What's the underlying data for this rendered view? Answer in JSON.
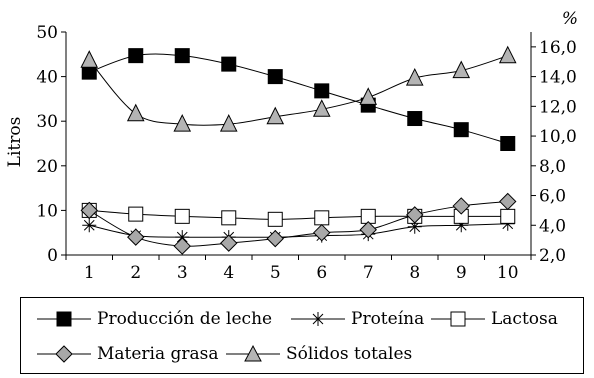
{
  "chart_data": {
    "type": "line",
    "x": [
      1,
      2,
      3,
      4,
      5,
      6,
      7,
      8,
      9,
      10
    ],
    "y_left": {
      "label": "Litros",
      "range": [
        0,
        50
      ],
      "ticks": [
        "0",
        "10",
        "20",
        "30",
        "40",
        "50"
      ]
    },
    "y_right": {
      "label": "%",
      "range": [
        2.0,
        17.0
      ],
      "ticks": [
        "2,0",
        "4,0",
        "6,0",
        "8,0",
        "10,0",
        "12,0",
        "14,0",
        "16,0"
      ]
    },
    "x_ticks": [
      "1",
      "2",
      "3",
      "4",
      "5",
      "6",
      "7",
      "8",
      "9",
      "10"
    ],
    "grid": false,
    "legend_position": "bottom",
    "series": [
      {
        "name": "Producción de leche",
        "axis": "left",
        "marker": "square",
        "fill": "#000000",
        "values": [
          41,
          44.7,
          44.7,
          42.8,
          40,
          36.8,
          33.6,
          30.6,
          28.1,
          25
        ]
      },
      {
        "name": "Proteína",
        "axis": "right",
        "marker": "asterisk",
        "fill": "none",
        "values": [
          4.0,
          3.3,
          3.2,
          3.2,
          3.2,
          3.3,
          3.4,
          3.9,
          4.0,
          4.1
        ]
      },
      {
        "name": "Lactosa",
        "axis": "right",
        "marker": "square",
        "fill": "#ffffff",
        "values": [
          5.0,
          4.75,
          4.6,
          4.5,
          4.4,
          4.5,
          4.6,
          4.6,
          4.6,
          4.6
        ]
      },
      {
        "name": "Materia grasa",
        "axis": "right",
        "marker": "diamond",
        "fill": "#a8a8a8",
        "values": [
          5.0,
          3.2,
          2.6,
          2.8,
          3.1,
          3.5,
          3.7,
          4.7,
          5.3,
          5.6
        ]
      },
      {
        "name": "Sólidos totales",
        "axis": "right",
        "marker": "triangle",
        "fill": "#b4b4b4",
        "values": [
          15.1,
          11.5,
          10.8,
          10.8,
          11.3,
          11.8,
          12.6,
          13.9,
          14.4,
          15.4
        ]
      }
    ]
  }
}
